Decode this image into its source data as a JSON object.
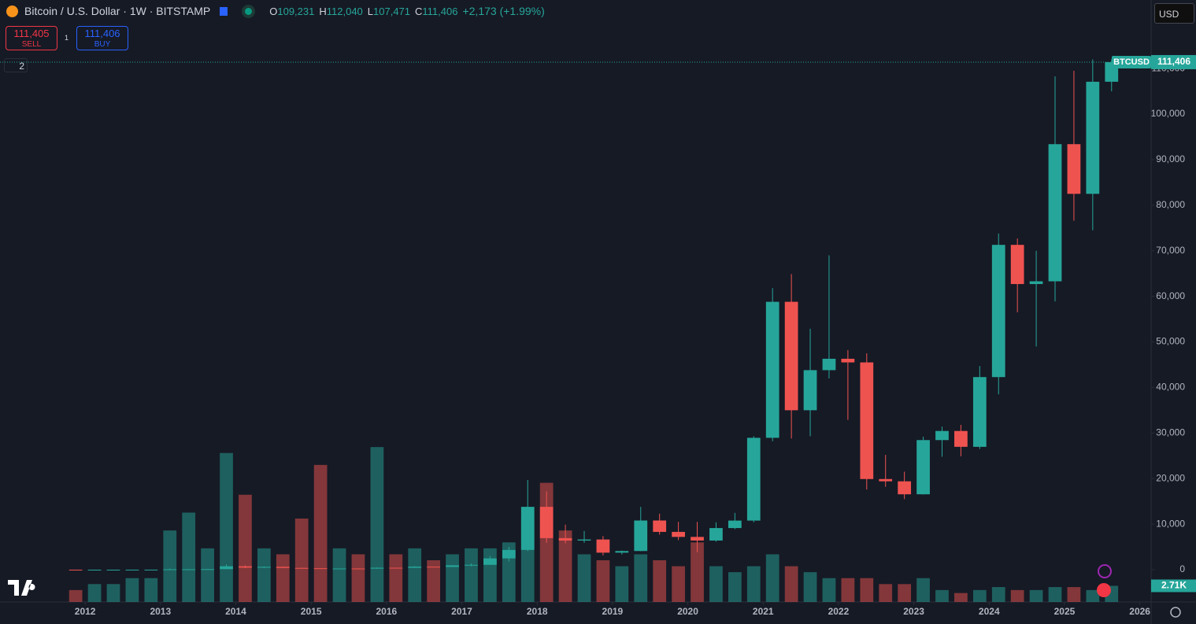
{
  "header": {
    "symbol": "Bitcoin / U.S. Dollar · 1W · BITSTAMP",
    "ohlc": [
      {
        "label": "O",
        "value": "109,231"
      },
      {
        "label": "H",
        "value": "112,040"
      },
      {
        "label": "L",
        "value": "107,471"
      },
      {
        "label": "C",
        "value": "111,406"
      }
    ],
    "change": "+2,173 (+1.99%)",
    "sell": {
      "price": "111,405",
      "label": "SELL"
    },
    "spread": "1",
    "buy": {
      "price": "111,406",
      "label": "BUY"
    },
    "currency": "USD",
    "panes": "2"
  },
  "chart_data": {
    "type": "candlestick",
    "symbol_tag": "BTCUSD",
    "x": [
      2011.875,
      2012.125,
      2012.375,
      2012.625,
      2012.875,
      2013.125,
      2013.375,
      2013.625,
      2013.875,
      2014.125,
      2014.375,
      2014.625,
      2014.875,
      2015.125,
      2015.375,
      2015.625,
      2015.875,
      2016.125,
      2016.375,
      2016.625,
      2016.875,
      2017.125,
      2017.375,
      2017.625,
      2017.875,
      2018.125,
      2018.375,
      2018.625,
      2018.875,
      2019.125,
      2019.375,
      2019.625,
      2019.875,
      2020.125,
      2020.375,
      2020.625,
      2020.875,
      2021.125,
      2021.375,
      2021.625,
      2021.875,
      2022.125,
      2022.375,
      2022.625,
      2022.875,
      2023.125,
      2023.375,
      2023.625,
      2023.875,
      2024.125,
      2024.375,
      2024.625,
      2024.875,
      2025.125,
      2025.375,
      2025.625
    ],
    "open": [
      5,
      4,
      5,
      6.7,
      12.4,
      13.5,
      93,
      97,
      125,
      750,
      450,
      640,
      390,
      320,
      245,
      265,
      236,
      430,
      416,
      670,
      610,
      960,
      1070,
      2480,
      4340,
      13800,
      6930,
      6390,
      6630,
      3740,
      4100,
      10800,
      8300,
      7200,
      6400,
      9140,
      10780,
      28950,
      58800,
      35000,
      43800,
      46300,
      45500,
      19900,
      19400,
      16550,
      28450,
      30450,
      26970,
      42280,
      71300,
      62700,
      63300,
      93400,
      82500,
      107100
    ],
    "high": [
      6,
      7,
      7,
      15,
      13.5,
      266,
      130,
      145,
      1160,
      950,
      680,
      650,
      460,
      330,
      260,
      320,
      500,
      460,
      780,
      670,
      1000,
      1350,
      3000,
      5000,
      19700,
      17200,
      9900,
      8500,
      7400,
      4200,
      13800,
      12300,
      10500,
      10500,
      10400,
      12470,
      29300,
      61800,
      64900,
      52900,
      69000,
      48200,
      47500,
      25200,
      21500,
      29200,
      31400,
      31800,
      44700,
      73800,
      72700,
      70000,
      108300,
      109500,
      112000,
      112040
    ],
    "low": [
      2,
      4,
      4.5,
      6.5,
      9.5,
      13,
      65,
      65,
      120,
      340,
      350,
      400,
      280,
      160,
      215,
      200,
      230,
      360,
      410,
      530,
      600,
      750,
      1070,
      1830,
      4100,
      5900,
      5800,
      5900,
      3150,
      3350,
      4050,
      7700,
      6500,
      3850,
      6150,
      8900,
      10400,
      28200,
      28800,
      29300,
      42000,
      32900,
      17600,
      18200,
      15500,
      16500,
      24800,
      24900,
      26500,
      38500,
      56500,
      49000,
      58900,
      76600,
      74500,
      105000
    ],
    "close": [
      4,
      5,
      6.7,
      12.4,
      13.5,
      93,
      97,
      125,
      750,
      450,
      640,
      390,
      320,
      245,
      265,
      236,
      430,
      416,
      670,
      610,
      960,
      1070,
      2480,
      4340,
      13800,
      6930,
      6390,
      6630,
      3740,
      4100,
      10800,
      8300,
      7200,
      6400,
      9140,
      10780,
      28950,
      58800,
      35000,
      43800,
      46300,
      45500,
      19900,
      19400,
      16550,
      28450,
      30450,
      26970,
      42280,
      71300,
      62700,
      63300,
      93400,
      82500,
      107100,
      111406
    ],
    "volumes": [
      2000,
      3000,
      3000,
      4000,
      4000,
      12000,
      15000,
      9000,
      25000,
      18000,
      9000,
      8000,
      14000,
      23000,
      9000,
      8000,
      26000,
      8000,
      9000,
      7000,
      8000,
      9000,
      9000,
      10000,
      14000,
      20000,
      12000,
      8000,
      7000,
      6000,
      8000,
      7000,
      6000,
      10000,
      6000,
      5000,
      6000,
      8000,
      6000,
      5000,
      4000,
      4000,
      4000,
      3000,
      3000,
      4000,
      2000,
      1500,
      2000,
      2500,
      2000,
      2000,
      2500,
      2500,
      2000,
      2710
    ],
    "up_color": "#26a69a",
    "down_color": "#ef5350",
    "xlim": [
      2010.87,
      2026.15
    ],
    "xticks": [
      2012,
      2013,
      2014,
      2015,
      2016,
      2017,
      2018,
      2019,
      2020,
      2021,
      2022,
      2023,
      2024,
      2025,
      2026
    ],
    "ylim": [
      -7081,
      125043
    ],
    "yticks": [
      0,
      {
        "value": 10000,
        "label": "10,000"
      },
      {
        "value": 20000,
        "label": "20,000"
      },
      {
        "value": 30000,
        "label": "30,000"
      },
      {
        "value": 40000,
        "label": "40,000"
      },
      {
        "value": 50000,
        "label": "50,000"
      },
      {
        "value": 60000,
        "label": "60,000"
      },
      {
        "value": 70000,
        "label": "70,000"
      },
      {
        "value": 80000,
        "label": "80,000"
      },
      {
        "value": 90000,
        "label": "90,000"
      },
      {
        "value": 100000,
        "label": "100,000"
      },
      {
        "value": 110000,
        "label": "110,000"
      }
    ],
    "vlim": [
      0,
      35000
    ],
    "last_price": {
      "value": 111406,
      "label": "111,406"
    },
    "last_volume": {
      "value": 2710,
      "label": "2.71K"
    }
  }
}
